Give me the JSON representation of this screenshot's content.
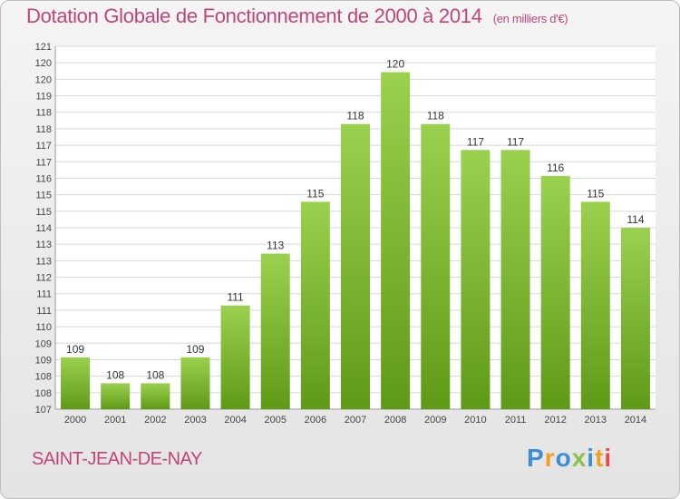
{
  "title": "Dotation Globale de Fonctionnement de 2000 à 2014",
  "subtitle": "(en milliers d'€)",
  "commune": "SAINT-JEAN-DE-NAY",
  "logo": {
    "letters": [
      {
        "char": "P",
        "color": "#3a8fd6"
      },
      {
        "char": "r",
        "color": "#f0a020"
      },
      {
        "char": "o",
        "color": "#3a8fd6"
      },
      {
        "char": "x",
        "color": "#8bc34a"
      },
      {
        "char": "i",
        "color": "#3a8fd6"
      },
      {
        "char": "t",
        "color": "#f0a020"
      },
      {
        "char": "i",
        "color": "#e84a4a"
      }
    ]
  },
  "colors": {
    "bar_top": "#9ad14e",
    "bar_bottom": "#5f9a16",
    "text_accent": "#c0467a"
  },
  "chart_data": {
    "type": "bar",
    "categories": [
      "2000",
      "2001",
      "2002",
      "2003",
      "2004",
      "2005",
      "2006",
      "2007",
      "2008",
      "2009",
      "2010",
      "2011",
      "2012",
      "2013",
      "2014"
    ],
    "values": [
      109,
      108,
      108,
      109,
      111,
      113,
      115,
      118,
      120,
      118,
      117,
      117,
      116,
      115,
      114
    ],
    "ylim": [
      107,
      121
    ],
    "yticks": [
      "107",
      "108",
      "108",
      "109",
      "109",
      "110",
      "111",
      "111",
      "112",
      "113",
      "113",
      "114",
      "115",
      "115",
      "116",
      "117",
      "117",
      "118",
      "118",
      "119",
      "120",
      "120",
      "121"
    ],
    "grid": true
  }
}
